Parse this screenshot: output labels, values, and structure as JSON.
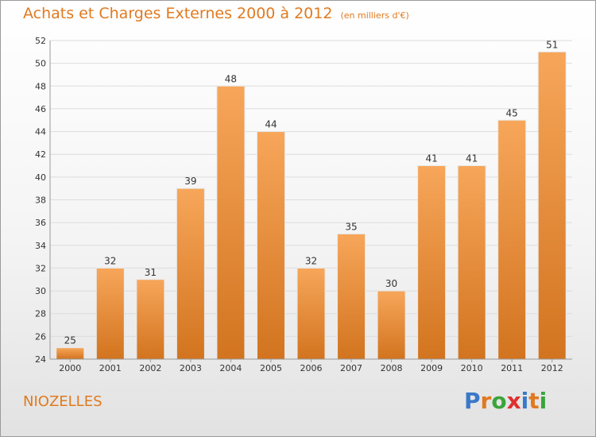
{
  "header": {
    "title": "Achats et Charges Externes 2000 à 2012",
    "subtitle": "(en milliers d'€)"
  },
  "footer": {
    "commune": "NIOZELLES",
    "logo_letters": [
      "P",
      "r",
      "o",
      "x",
      "i",
      "t",
      "i"
    ],
    "logo_colors": [
      "#3a78c9",
      "#e07a20",
      "#3aa53a",
      "#e03030",
      "#3a78c9",
      "#e07a20",
      "#3aa53a"
    ]
  },
  "colors": {
    "bar_light": "#f7a65a",
    "bar_dark": "#d2741f",
    "accent": "#e07a20",
    "grid": "#dcdcdc"
  },
  "chart_data": {
    "type": "bar",
    "categories": [
      "2000",
      "2001",
      "2002",
      "2003",
      "2004",
      "2005",
      "2006",
      "2007",
      "2008",
      "2009",
      "2010",
      "2011",
      "2012"
    ],
    "values": [
      25,
      32,
      31,
      39,
      48,
      44,
      32,
      35,
      30,
      41,
      41,
      45,
      51
    ],
    "ylim": [
      24,
      52
    ],
    "yticks": [
      24,
      26,
      28,
      30,
      32,
      34,
      36,
      38,
      40,
      42,
      44,
      46,
      48,
      50,
      52
    ],
    "grid": true,
    "legend": "none"
  }
}
